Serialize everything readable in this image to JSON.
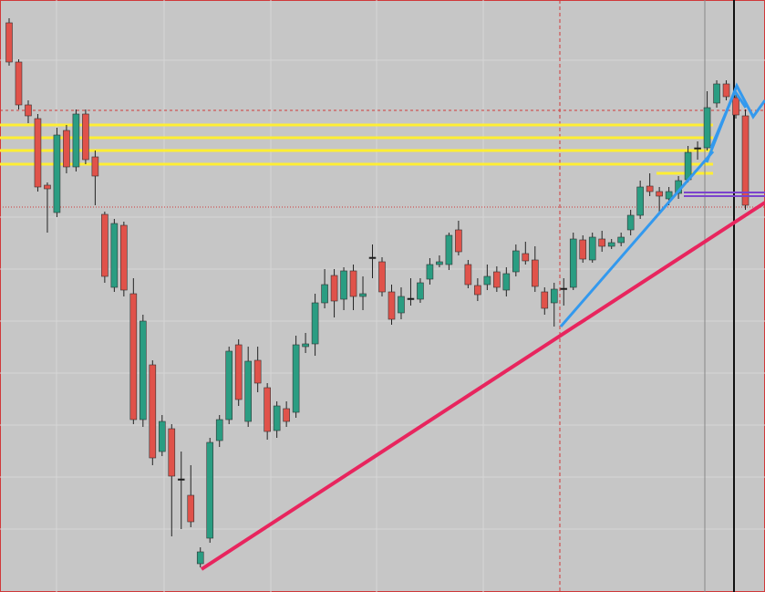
{
  "chart_data": {
    "type": "candlestick",
    "up_color": "#2a9d82",
    "down_color": "#e0524a",
    "doji_color": "#111111",
    "ylim": [
      0,
      649
    ],
    "ohlc": [
      [
        624,
        629,
        577,
        581
      ],
      [
        581,
        584,
        529,
        534
      ],
      [
        534,
        539,
        514,
        522
      ],
      [
        519,
        524,
        439,
        444
      ],
      [
        446,
        449,
        394,
        442
      ],
      [
        416,
        509,
        411,
        501
      ],
      [
        506,
        512,
        459,
        466
      ],
      [
        466,
        529,
        461,
        524
      ],
      [
        524,
        529,
        469,
        474
      ],
      [
        477,
        484,
        424,
        456
      ],
      [
        414,
        417,
        339,
        346
      ],
      [
        334,
        409,
        329,
        404
      ],
      [
        402,
        406,
        324,
        331
      ],
      [
        327,
        344,
        184,
        189
      ],
      [
        189,
        304,
        181,
        297
      ],
      [
        249,
        254,
        139,
        147
      ],
      [
        154,
        194,
        149,
        187
      ],
      [
        179,
        184,
        61,
        127
      ],
      [
        124,
        154,
        69,
        124
      ],
      [
        106,
        139,
        71,
        77
      ],
      [
        31,
        49,
        27,
        44
      ],
      [
        59,
        169,
        54,
        164
      ],
      [
        166,
        194,
        159,
        189
      ],
      [
        189,
        269,
        184,
        264
      ],
      [
        271,
        277,
        204,
        211
      ],
      [
        187,
        269,
        181,
        253
      ],
      [
        254,
        269,
        219,
        229
      ],
      [
        224,
        229,
        167,
        176
      ],
      [
        177,
        209,
        169,
        204
      ],
      [
        201,
        209,
        181,
        187
      ],
      [
        197,
        281,
        191,
        271
      ],
      [
        269,
        284,
        262,
        272
      ],
      [
        272,
        327,
        259,
        317
      ],
      [
        317,
        354,
        311,
        337
      ],
      [
        347,
        354,
        301,
        319
      ],
      [
        321,
        356,
        309,
        352
      ],
      [
        352,
        359,
        309,
        324
      ],
      [
        324,
        346,
        309,
        327
      ],
      [
        367,
        381,
        344,
        367
      ],
      [
        362,
        367,
        324,
        329
      ],
      [
        329,
        337,
        293,
        299
      ],
      [
        306,
        334,
        299,
        324
      ],
      [
        322,
        344,
        314,
        322
      ],
      [
        321,
        344,
        317,
        339
      ],
      [
        343,
        366,
        337,
        359
      ],
      [
        359,
        369,
        356,
        362
      ],
      [
        359,
        394,
        353,
        391
      ],
      [
        397,
        407,
        369,
        373
      ],
      [
        359,
        364,
        333,
        337
      ],
      [
        336,
        344,
        319,
        326
      ],
      [
        337,
        359,
        331,
        346
      ],
      [
        351,
        357,
        329,
        334
      ],
      [
        331,
        356,
        324,
        349
      ],
      [
        351,
        381,
        346,
        374
      ],
      [
        371,
        384,
        359,
        363
      ],
      [
        364,
        379,
        329,
        335
      ],
      [
        329,
        334,
        304,
        311
      ],
      [
        317,
        339,
        291,
        332
      ],
      [
        333,
        344,
        314,
        333
      ],
      [
        334,
        394,
        331,
        387
      ],
      [
        386,
        391,
        361,
        365
      ],
      [
        364,
        394,
        361,
        389
      ],
      [
        387,
        396,
        373,
        379
      ],
      [
        379,
        387,
        376,
        383
      ],
      [
        383,
        394,
        379,
        389
      ],
      [
        397,
        419,
        391,
        413
      ],
      [
        413,
        451,
        409,
        444
      ],
      [
        445,
        459,
        434,
        439
      ],
      [
        439,
        444,
        414,
        434
      ],
      [
        431,
        444,
        424,
        439
      ],
      [
        437,
        456,
        431,
        451
      ],
      [
        452,
        489,
        449,
        482
      ],
      [
        487,
        494,
        474,
        487
      ],
      [
        487,
        549,
        484,
        531
      ],
      [
        536,
        561,
        531,
        557
      ],
      [
        557,
        561,
        539,
        543
      ],
      [
        542,
        552,
        519,
        523
      ],
      [
        522,
        529,
        419,
        424
      ]
    ]
  }
}
